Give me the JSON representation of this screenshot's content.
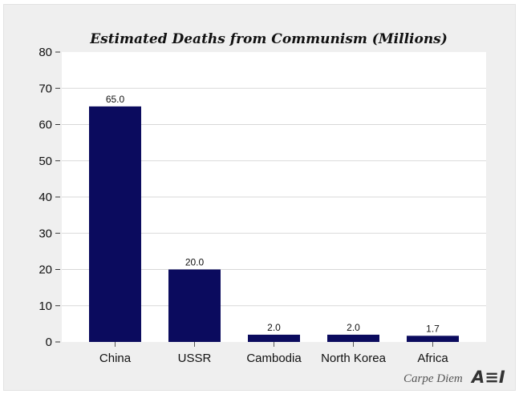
{
  "chart_data": {
    "type": "bar",
    "title": "Estimated Deaths from Communism (Millions)",
    "categories": [
      "China",
      "USSR",
      "Cambodia",
      "North Korea",
      "Africa"
    ],
    "values": [
      65.0,
      20.0,
      2.0,
      2.0,
      1.7
    ],
    "data_labels": [
      "65.0",
      "20.0",
      "2.0",
      "2.0",
      "1.7"
    ],
    "xlabel": "",
    "ylabel": "",
    "ylim": [
      0,
      80
    ],
    "yticks": [
      0,
      10,
      20,
      30,
      40,
      50,
      60,
      70,
      80
    ],
    "grid": true,
    "bar_color": "#0b0b5e"
  },
  "credit": {
    "text": "Carpe Diem",
    "logo": "AEI"
  }
}
